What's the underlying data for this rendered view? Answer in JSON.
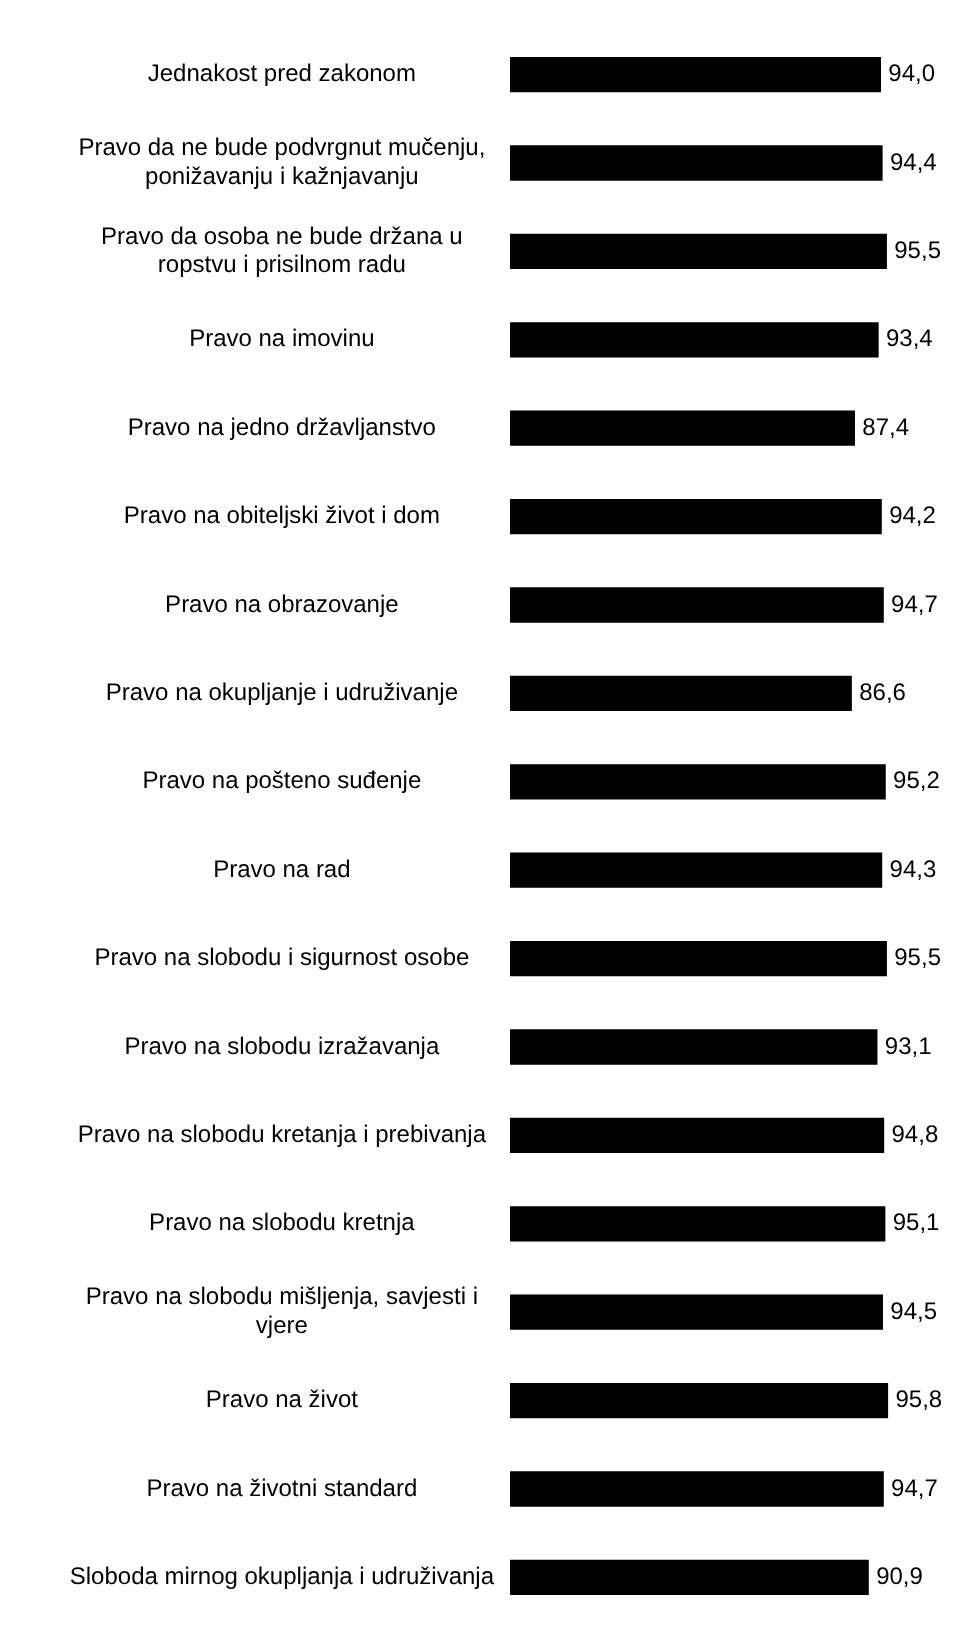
{
  "chart_data": {
    "type": "bar",
    "orientation": "horizontal",
    "categories": [
      "Jednakost pred zakonom",
      "Pravo da ne bude podvrgnut mučenju, ponižavanju i kažnjavanju",
      "Pravo da osoba ne bude držana u ropstvu i prisilnom radu",
      "Pravo na imovinu",
      "Pravo na jedno državljanstvo",
      "Pravo na obiteljski život i dom",
      "Pravo na obrazovanje",
      "Pravo na okupljanje i udruživanje",
      "Pravo na pošteno suđenje",
      "Pravo na rad",
      "Pravo na slobodu i sigurnost osobe",
      "Pravo na slobodu izražavanja",
      "Pravo na slobodu kretanja i prebivanja",
      "Pravo na slobodu kretnja",
      "Pravo na slobodu mišljenja, savjesti i vjere",
      "Pravo na život",
      "Pravo na životni standard",
      "Sloboda mirnog okupljanja i udruživanja"
    ],
    "values": [
      94.0,
      94.4,
      95.5,
      93.4,
      87.4,
      94.2,
      94.7,
      86.6,
      95.2,
      94.3,
      95.5,
      93.1,
      94.8,
      95.1,
      94.5,
      95.8,
      94.7,
      90.9
    ],
    "value_labels": [
      "94,0",
      "94,4",
      "95,5",
      "93,4",
      "87,4",
      "94,2",
      "94,7",
      "86,6",
      "95,2",
      "94,3",
      "95,5",
      "93,1",
      "94,8",
      "95,1",
      "94,5",
      "95,8",
      "94,7",
      "90,9"
    ],
    "color": "#000000",
    "tick_labels": "y"
  }
}
